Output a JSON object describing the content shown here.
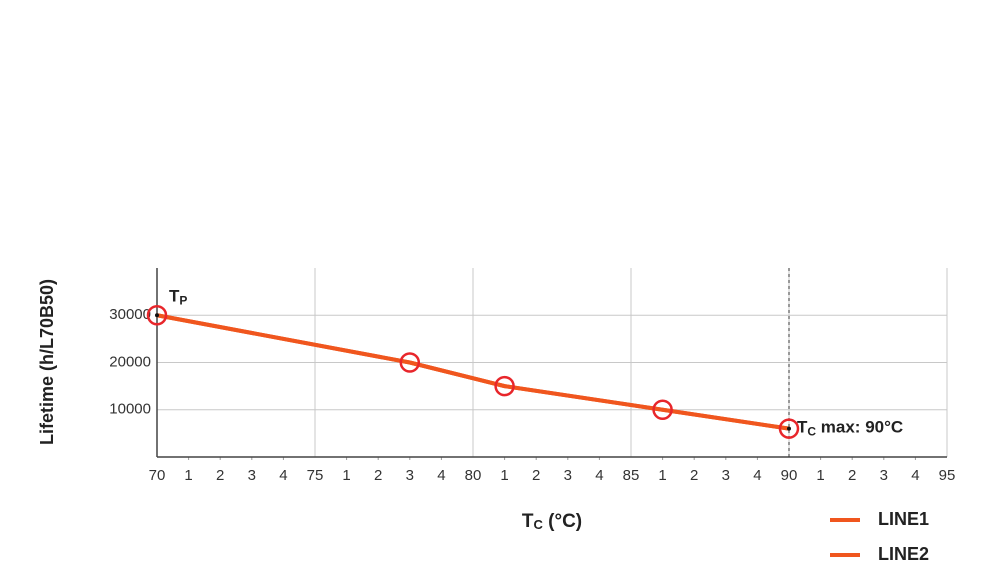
{
  "chart_data": {
    "type": "line",
    "y_label": "Lifetime (h/L70B50)",
    "x_label": {
      "main": "T",
      "sub": "C",
      "rest": " (°C)"
    },
    "xlim": [
      70,
      95
    ],
    "ylim": [
      0,
      40000
    ],
    "xticks": [
      {
        "value": 70,
        "label": "70"
      },
      {
        "value": 71,
        "label": "1"
      },
      {
        "value": 72,
        "label": "2"
      },
      {
        "value": 73,
        "label": "3"
      },
      {
        "value": 74,
        "label": "4"
      },
      {
        "value": 75,
        "label": "75"
      },
      {
        "value": 76,
        "label": "1"
      },
      {
        "value": 77,
        "label": "2"
      },
      {
        "value": 78,
        "label": "3"
      },
      {
        "value": 79,
        "label": "4"
      },
      {
        "value": 80,
        "label": "80"
      },
      {
        "value": 81,
        "label": "1"
      },
      {
        "value": 82,
        "label": "2"
      },
      {
        "value": 83,
        "label": "3"
      },
      {
        "value": 84,
        "label": "4"
      },
      {
        "value": 85,
        "label": "85"
      },
      {
        "value": 86,
        "label": "1"
      },
      {
        "value": 87,
        "label": "2"
      },
      {
        "value": 88,
        "label": "3"
      },
      {
        "value": 89,
        "label": "4"
      },
      {
        "value": 90,
        "label": "90"
      },
      {
        "value": 91,
        "label": "1"
      },
      {
        "value": 92,
        "label": "2"
      },
      {
        "value": 93,
        "label": "3"
      },
      {
        "value": 94,
        "label": "4"
      },
      {
        "value": 95,
        "label": "95"
      }
    ],
    "yticks": [
      10000,
      20000,
      30000
    ],
    "grid": true,
    "x": [
      70,
      78,
      81,
      86,
      90
    ],
    "series": [
      {
        "name": "LINE1",
        "color": "#f0561e",
        "marker_color": "#e8262b",
        "values": [
          30000,
          20000,
          15000,
          10000,
          6000
        ]
      },
      {
        "name": "LINE2",
        "color": "#f0561e",
        "values": [
          30000,
          20000,
          15000,
          10000,
          6000
        ]
      }
    ],
    "reference_x": 90,
    "annotations": [
      {
        "main": "T",
        "sub": "P"
      },
      {
        "main": "T",
        "sub": "C",
        "rest": " max: 90°C"
      }
    ],
    "legend": "bottom-right"
  }
}
